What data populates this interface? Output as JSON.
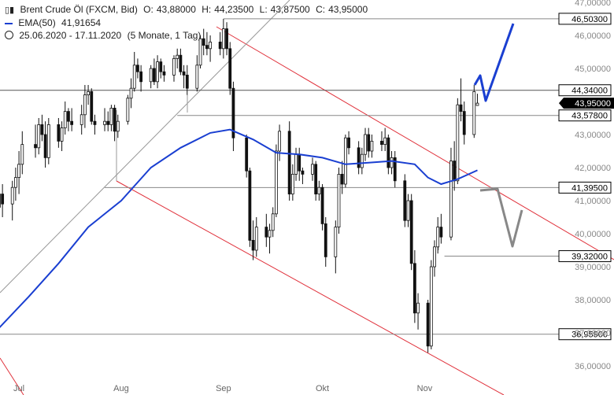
{
  "header": {
    "symbol": "Brent Crude Öl (FXCM, Bid)",
    "open_label": "O:",
    "open": "43,88000",
    "high_label": "H:",
    "high": "44,23500",
    "low_label": "L:",
    "low": "43,87500",
    "close_label": "C:",
    "close": "43,95000",
    "ema_label": "EMA(50)",
    "ema_value": "41,91654",
    "range": "25.06.2020 - 17.11.2020",
    "period": "(5 Monate, 1 Tag)"
  },
  "colors": {
    "candle": "#111111",
    "ema": "#1a3fd1",
    "channel": "#e0303a",
    "level": "#888888",
    "trend": "#999999",
    "arrow_up": "#1a3fd1",
    "arrow_down": "#888888",
    "current_bg": "#000000"
  },
  "chart_data": {
    "type": "candlestick",
    "ylim": [
      35.6,
      47.2
    ],
    "yticks": [
      {
        "v": 47,
        "label": "47,00000"
      },
      {
        "v": 46,
        "label": "46,00000"
      },
      {
        "v": 45,
        "label": "45,00000"
      },
      {
        "v": 43,
        "label": "43,00000"
      },
      {
        "v": 42,
        "label": "42,00000"
      },
      {
        "v": 41,
        "label": "41,00000"
      },
      {
        "v": 40,
        "label": "40,00000"
      },
      {
        "v": 39,
        "label": "39,00000"
      },
      {
        "v": 38,
        "label": "38,00000"
      },
      {
        "v": 37,
        "label": "37,00000"
      },
      {
        "v": 36,
        "label": "36,00000"
      }
    ],
    "xticks": [
      {
        "label": "Jul",
        "date": "2020-07-01"
      },
      {
        "label": "Aug",
        "date": "2020-08-01"
      },
      {
        "label": "Sep",
        "date": "2020-09-01"
      },
      {
        "label": "Okt",
        "date": "2020-10-01"
      },
      {
        "label": "Nov",
        "date": "2020-11-01"
      }
    ],
    "levels": [
      {
        "value": 46.503,
        "label": "46,50300",
        "from": "2020-09-01"
      },
      {
        "value": 44.34,
        "label": "44,34000",
        "from": "2020-06-25",
        "dark": true
      },
      {
        "value": 43.578,
        "label": "43,57800",
        "from": "2020-08-18"
      },
      {
        "value": 41.395,
        "label": "41,39500",
        "from": "2020-07-27"
      },
      {
        "value": 39.32,
        "label": "39,32000",
        "from": "2020-11-07"
      },
      {
        "value": 36.959,
        "label": "36,95900",
        "from": "2020-06-25"
      }
    ],
    "current": {
      "value": 43.95,
      "label": "43,95000"
    },
    "ema_series": [
      [
        "2020-06-25",
        37.15
      ],
      [
        "2020-07-04",
        38.1
      ],
      [
        "2020-07-13",
        39.1
      ],
      [
        "2020-07-22",
        40.2
      ],
      [
        "2020-08-01",
        41.0
      ],
      [
        "2020-08-10",
        42.0
      ],
      [
        "2020-08-19",
        42.6
      ],
      [
        "2020-08-28",
        43.05
      ],
      [
        "2020-09-03",
        43.15
      ],
      [
        "2020-09-10",
        42.85
      ],
      [
        "2020-09-17",
        42.45
      ],
      [
        "2020-09-24",
        42.4
      ],
      [
        "2020-10-01",
        42.3
      ],
      [
        "2020-10-08",
        42.1
      ],
      [
        "2020-10-15",
        42.15
      ],
      [
        "2020-10-22",
        42.2
      ],
      [
        "2020-10-29",
        42.1
      ],
      [
        "2020-11-02",
        41.7
      ],
      [
        "2020-11-06",
        41.5
      ],
      [
        "2020-11-11",
        41.65
      ],
      [
        "2020-11-17",
        41.92
      ]
    ],
    "candles": [
      [
        "2020-06-25",
        40.8,
        41.6,
        40.0,
        41.2
      ],
      [
        "2020-06-26",
        41.2,
        41.5,
        40.5,
        40.9
      ],
      [
        "2020-06-29",
        40.9,
        41.6,
        40.4,
        41.4
      ],
      [
        "2020-06-30",
        41.4,
        42.0,
        41.0,
        41.7
      ],
      [
        "2020-07-01",
        41.7,
        42.5,
        41.2,
        42.1
      ],
      [
        "2020-07-02",
        42.1,
        43.1,
        41.8,
        42.7
      ],
      [
        "2020-07-06",
        42.7,
        43.3,
        42.3,
        42.6
      ],
      [
        "2020-07-07",
        42.6,
        43.5,
        42.4,
        43.3
      ],
      [
        "2020-07-08",
        43.3,
        43.6,
        42.8,
        43.0
      ],
      [
        "2020-07-09",
        43.0,
        43.4,
        42.0,
        42.3
      ],
      [
        "2020-07-10",
        42.3,
        43.5,
        42.1,
        43.3
      ],
      [
        "2020-07-13",
        43.3,
        43.5,
        42.6,
        42.8
      ],
      [
        "2020-07-14",
        42.8,
        43.4,
        42.5,
        43.2
      ],
      [
        "2020-07-15",
        43.2,
        44.0,
        43.0,
        43.7
      ],
      [
        "2020-07-16",
        43.7,
        43.8,
        43.1,
        43.4
      ],
      [
        "2020-07-17",
        43.4,
        43.8,
        43.1,
        43.3
      ],
      [
        "2020-07-20",
        43.3,
        43.9,
        43.0,
        43.6
      ],
      [
        "2020-07-21",
        43.6,
        44.5,
        43.2,
        44.2
      ],
      [
        "2020-07-22",
        44.2,
        44.5,
        43.9,
        44.3
      ],
      [
        "2020-07-23",
        44.3,
        44.4,
        43.3,
        43.4
      ],
      [
        "2020-07-24",
        43.4,
        43.6,
        43.0,
        43.3
      ],
      [
        "2020-07-27",
        43.3,
        43.8,
        43.1,
        43.4
      ],
      [
        "2020-07-28",
        43.4,
        43.7,
        43.1,
        43.3
      ],
      [
        "2020-07-29",
        43.3,
        43.9,
        43.1,
        43.8
      ],
      [
        "2020-07-30",
        43.8,
        43.9,
        42.8,
        43.1
      ],
      [
        "2020-07-31",
        43.1,
        43.6,
        42.9,
        43.4
      ],
      [
        "2020-08-03",
        43.4,
        44.2,
        43.3,
        44.1
      ],
      [
        "2020-08-04",
        44.1,
        44.7,
        43.8,
        44.4
      ],
      [
        "2020-08-05",
        44.4,
        45.5,
        44.3,
        45.1
      ],
      [
        "2020-08-06",
        45.1,
        45.3,
        44.7,
        44.9
      ],
      [
        "2020-08-07",
        44.9,
        45.1,
        44.3,
        44.6
      ],
      [
        "2020-08-10",
        44.6,
        45.1,
        44.4,
        45.0
      ],
      [
        "2020-08-11",
        45.0,
        45.3,
        44.5,
        44.6
      ],
      [
        "2020-08-12",
        44.6,
        45.4,
        44.4,
        45.2
      ],
      [
        "2020-08-13",
        45.2,
        45.3,
        44.7,
        44.9
      ],
      [
        "2020-08-14",
        44.9,
        45.1,
        44.6,
        44.8
      ],
      [
        "2020-08-17",
        44.8,
        45.4,
        44.6,
        45.3
      ],
      [
        "2020-08-18",
        45.3,
        45.6,
        45.0,
        45.4
      ],
      [
        "2020-08-19",
        45.4,
        45.6,
        44.8,
        44.9
      ],
      [
        "2020-08-20",
        44.9,
        45.1,
        44.4,
        44.8
      ],
      [
        "2020-08-21",
        44.8,
        45.1,
        44.2,
        44.4
      ],
      [
        "2020-08-24",
        44.4,
        45.4,
        44.3,
        45.1
      ],
      [
        "2020-08-25",
        45.1,
        46.0,
        45.0,
        45.9
      ],
      [
        "2020-08-26",
        45.9,
        46.2,
        45.4,
        45.7
      ],
      [
        "2020-08-27",
        45.7,
        46.1,
        45.4,
        45.6
      ],
      [
        "2020-08-28",
        45.6,
        46.0,
        45.2,
        45.8
      ],
      [
        "2020-08-31",
        45.8,
        46.1,
        45.4,
        45.6
      ],
      [
        "2020-09-01",
        45.6,
        46.5,
        45.3,
        46.2
      ],
      [
        "2020-09-02",
        46.2,
        46.4,
        45.4,
        45.6
      ],
      [
        "2020-09-03",
        45.6,
        45.8,
        44.2,
        44.4
      ],
      [
        "2020-09-04",
        44.4,
        44.6,
        42.5,
        42.9
      ],
      [
        "2020-09-08",
        42.9,
        43.0,
        41.7,
        41.9
      ],
      [
        "2020-09-09",
        41.9,
        42.0,
        39.6,
        39.8
      ],
      [
        "2020-09-10",
        39.8,
        40.4,
        39.2,
        39.5
      ],
      [
        "2020-09-11",
        39.5,
        40.5,
        39.3,
        40.2
      ],
      [
        "2020-09-14",
        40.2,
        40.6,
        39.6,
        39.9
      ],
      [
        "2020-09-15",
        39.9,
        40.3,
        39.4,
        40.1
      ],
      [
        "2020-09-16",
        40.1,
        40.8,
        39.9,
        40.6
      ],
      [
        "2020-09-17",
        40.6,
        42.7,
        40.5,
        42.5
      ],
      [
        "2020-09-18",
        42.5,
        43.3,
        42.2,
        43.1
      ],
      [
        "2020-09-21",
        43.1,
        43.4,
        41.0,
        41.2
      ],
      [
        "2020-09-22",
        41.2,
        42.1,
        41.0,
        41.8
      ],
      [
        "2020-09-23",
        41.8,
        42.6,
        41.6,
        42.4
      ],
      [
        "2020-09-24",
        42.4,
        42.6,
        41.6,
        41.9
      ],
      [
        "2020-09-25",
        41.9,
        42.0,
        41.5,
        41.8
      ],
      [
        "2020-09-28",
        41.8,
        42.3,
        41.6,
        42.1
      ],
      [
        "2020-09-29",
        42.1,
        42.2,
        41.0,
        41.2
      ],
      [
        "2020-09-30",
        41.2,
        41.6,
        41.0,
        41.4
      ],
      [
        "2020-10-01",
        41.4,
        41.5,
        40.1,
        40.3
      ],
      [
        "2020-10-02",
        40.3,
        40.5,
        39.0,
        39.3
      ],
      [
        "2020-10-05",
        39.3,
        40.4,
        38.8,
        40.2
      ],
      [
        "2020-10-06",
        40.2,
        42.0,
        40.0,
        41.8
      ],
      [
        "2020-10-07",
        41.8,
        42.2,
        41.2,
        41.5
      ],
      [
        "2020-10-08",
        41.5,
        43.0,
        41.4,
        42.9
      ],
      [
        "2020-10-09",
        42.9,
        43.1,
        42.4,
        42.6
      ],
      [
        "2020-10-12",
        42.6,
        42.8,
        41.8,
        42.0
      ],
      [
        "2020-10-13",
        42.0,
        42.6,
        41.8,
        42.4
      ],
      [
        "2020-10-14",
        42.4,
        43.2,
        42.2,
        43.0
      ],
      [
        "2020-10-15",
        43.0,
        43.2,
        42.3,
        42.5
      ],
      [
        "2020-10-16",
        42.5,
        43.0,
        42.3,
        42.8
      ],
      [
        "2020-10-19",
        42.8,
        43.1,
        42.5,
        42.7
      ],
      [
        "2020-10-20",
        42.7,
        43.2,
        42.5,
        42.9
      ],
      [
        "2020-10-21",
        42.9,
        43.0,
        41.8,
        42.0
      ],
      [
        "2020-10-22",
        42.0,
        42.5,
        41.8,
        42.3
      ],
      [
        "2020-10-23",
        42.3,
        42.5,
        41.4,
        41.6
      ],
      [
        "2020-10-26",
        41.6,
        41.8,
        40.2,
        40.4
      ],
      [
        "2020-10-27",
        40.4,
        41.2,
        40.2,
        41.0
      ],
      [
        "2020-10-28",
        41.0,
        41.2,
        38.9,
        39.1
      ],
      [
        "2020-10-29",
        39.1,
        39.5,
        37.3,
        37.6
      ],
      [
        "2020-10-30",
        37.6,
        38.2,
        37.1,
        37.9
      ],
      [
        "2020-11-02",
        37.9,
        38.0,
        36.4,
        36.6
      ],
      [
        "2020-11-03",
        36.6,
        39.2,
        36.5,
        39.0
      ],
      [
        "2020-11-04",
        39.0,
        39.8,
        38.7,
        39.6
      ],
      [
        "2020-11-05",
        39.6,
        40.5,
        39.4,
        40.2
      ],
      [
        "2020-11-06",
        40.2,
        40.6,
        39.7,
        39.9
      ],
      [
        "2020-11-09",
        39.9,
        42.6,
        39.8,
        42.2
      ],
      [
        "2020-11-10",
        42.2,
        42.8,
        41.3,
        41.6
      ],
      [
        "2020-11-11",
        41.6,
        44.1,
        41.5,
        43.9
      ],
      [
        "2020-11-12",
        43.9,
        44.7,
        43.4,
        43.7
      ],
      [
        "2020-11-13",
        43.7,
        44.0,
        42.7,
        43.0
      ],
      [
        "2020-11-16",
        43.0,
        44.5,
        42.9,
        44.3
      ],
      [
        "2020-11-17",
        43.88,
        44.235,
        43.875,
        43.95
      ]
    ]
  }
}
